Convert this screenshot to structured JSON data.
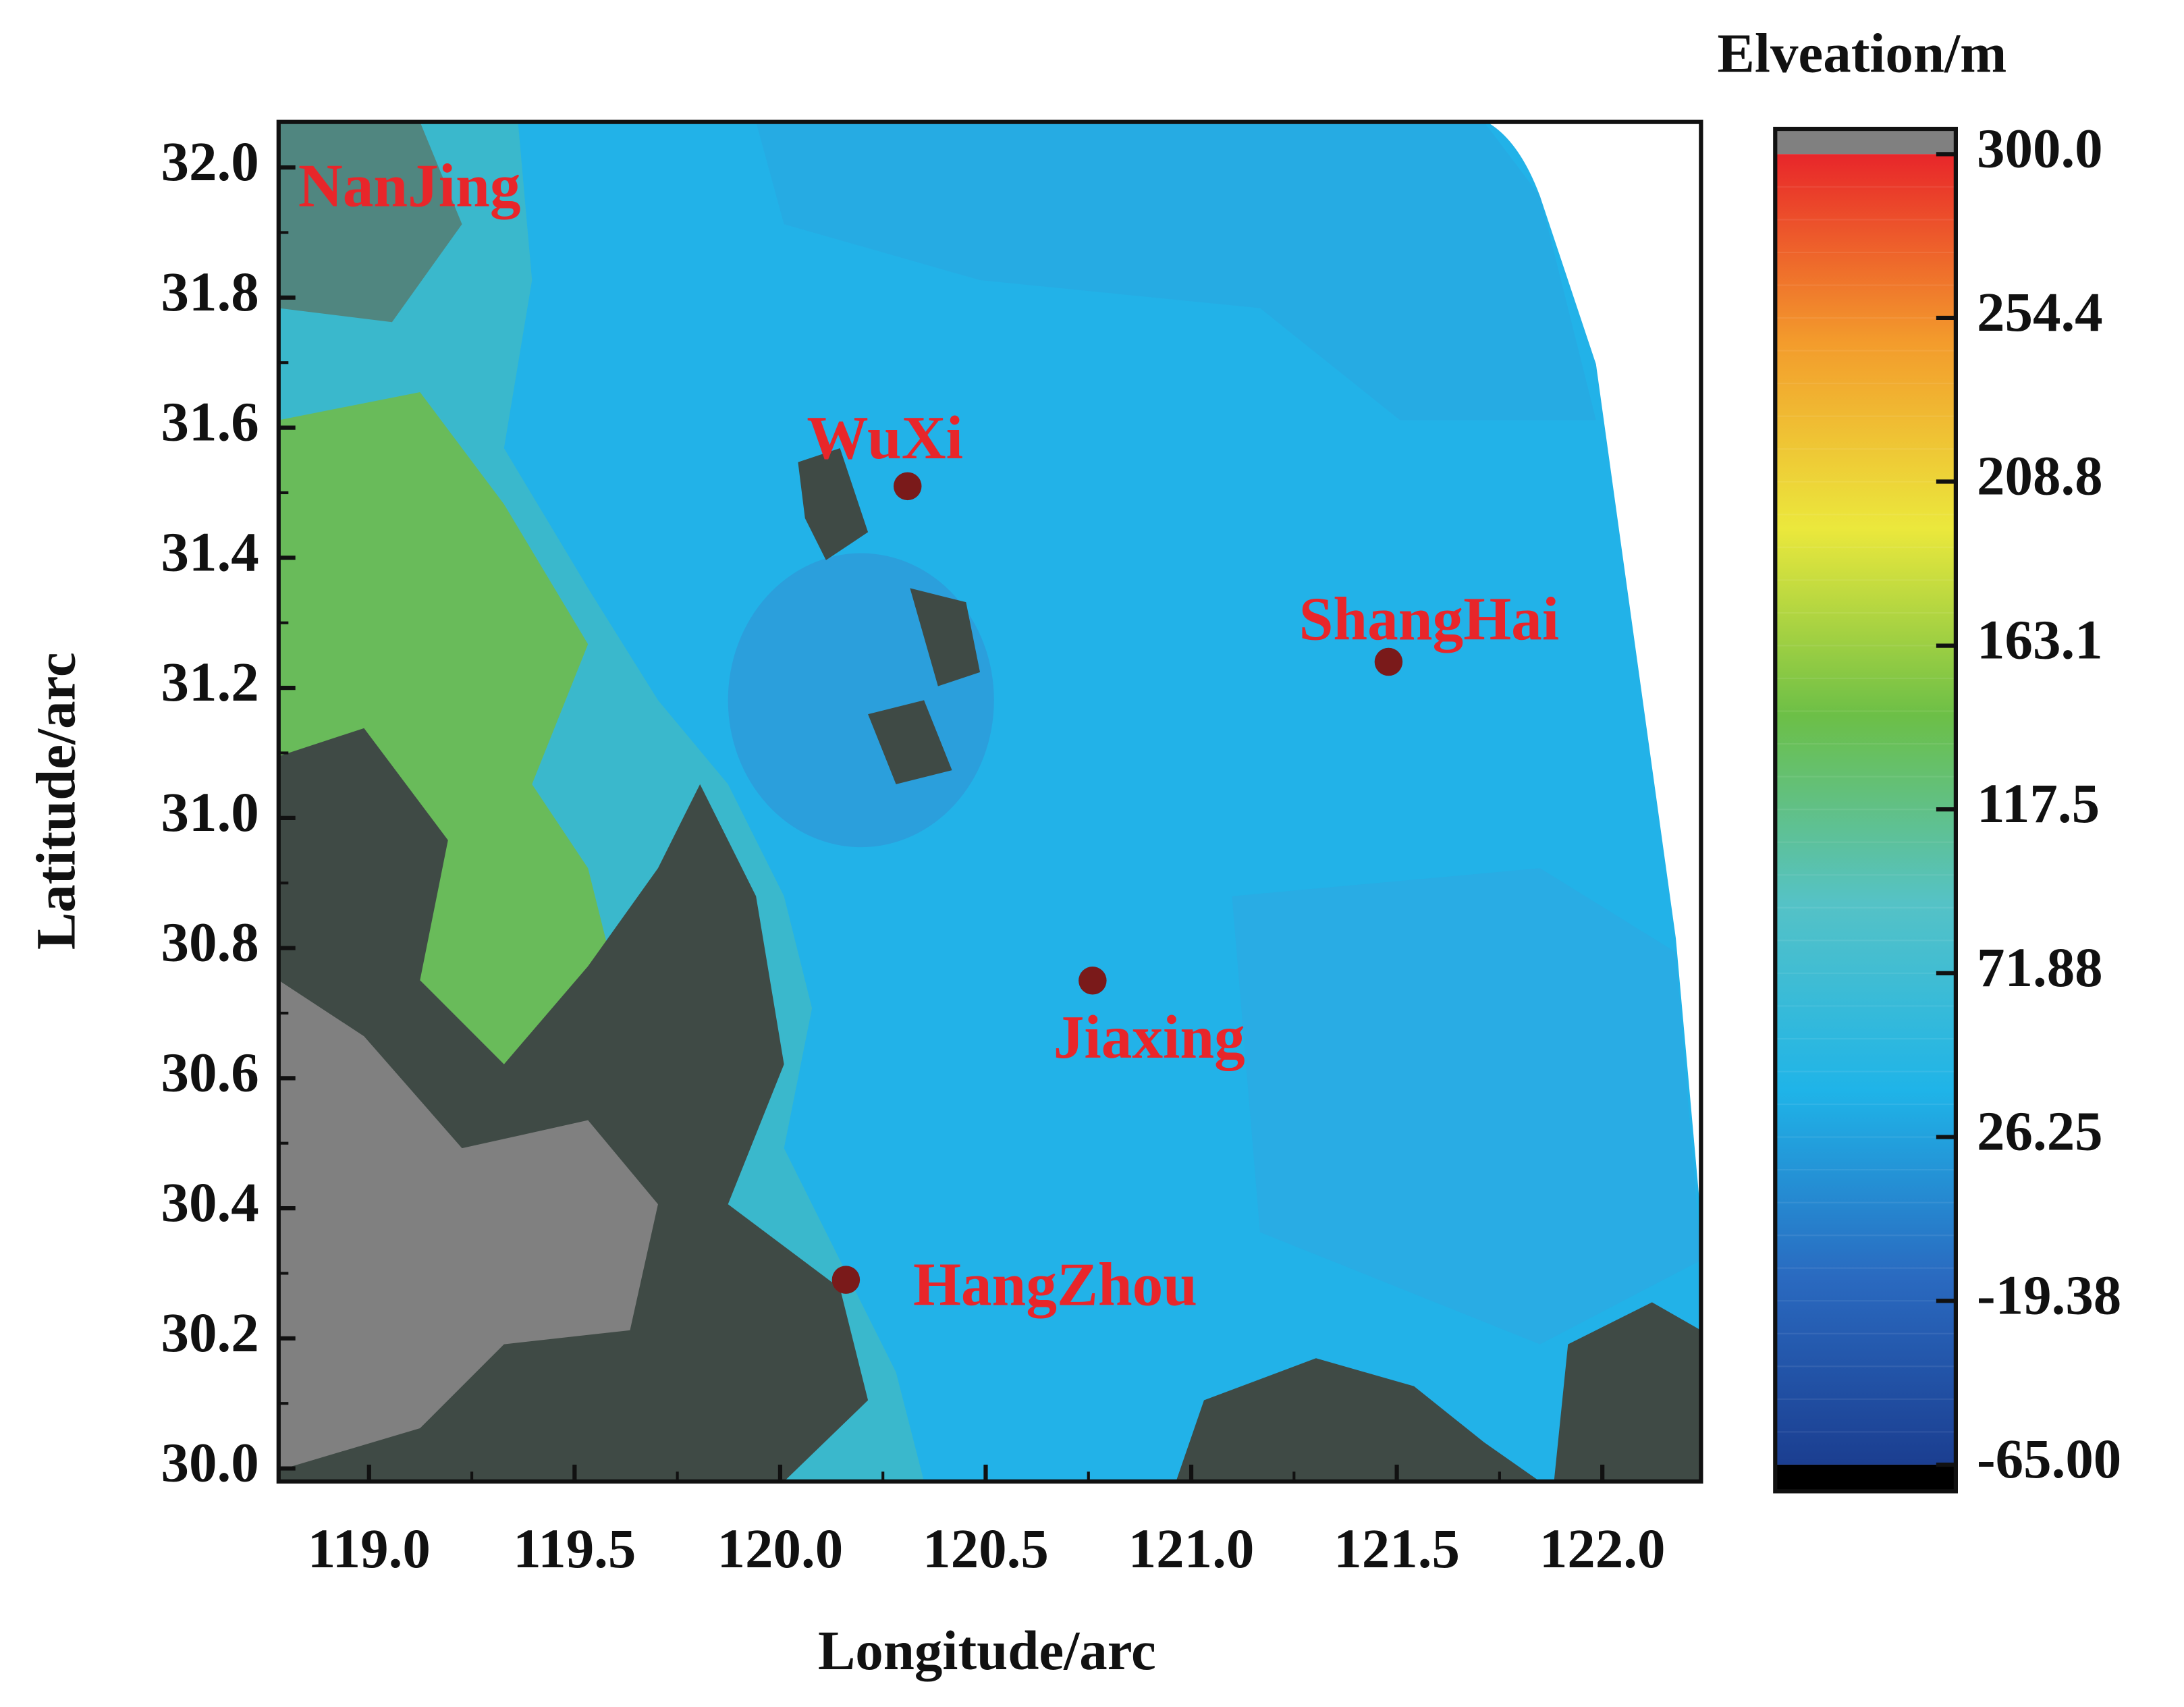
{
  "chart_data": {
    "type": "map",
    "x_label": "Longitude/arc",
    "y_label": "Latitude/arc",
    "xlim": [
      118.78,
      122.24
    ],
    "ylim": [
      29.98,
      32.07
    ],
    "xticks": [
      {
        "value": 119,
        "label": "119.0"
      },
      {
        "value": 119.5,
        "label": "119.5"
      },
      {
        "value": 120,
        "label": "120.0"
      },
      {
        "value": 120.5,
        "label": "120.5"
      },
      {
        "value": 121,
        "label": "121.0"
      },
      {
        "value": 121.5,
        "label": "121.5"
      },
      {
        "value": 122,
        "label": "122.0"
      }
    ],
    "yticks": [
      {
        "value": 30,
        "label": "30.0"
      },
      30.2,
      30.4,
      30.6,
      30.8,
      {
        "value": 31,
        "label": "31.0"
      },
      31.2,
      31.4,
      31.6,
      31.8,
      {
        "value": 32,
        "label": "32.0"
      }
    ],
    "cities": [
      {
        "name": "NanJing"
      },
      {
        "name": "WuXi",
        "lon": 120.31,
        "lat": 31.51
      },
      {
        "name": "ShangHai",
        "lon": 121.48,
        "lat": 31.24
      },
      {
        "name": "Jiaxing",
        "lon": 120.76,
        "lat": 30.75
      },
      {
        "name": "HangZhou",
        "lon": 120.16,
        "lat": 30.29
      }
    ],
    "city_color": "#e8262a",
    "marker_color": "#7a1a1a",
    "colorbar": {
      "title": "Elveation/m",
      "clim": [
        -65,
        300
      ],
      "ticks": [
        {
          "value": 300,
          "label": "300.0"
        },
        254.4,
        208.8,
        163.1,
        117.5,
        71.88,
        26.25,
        -19.38,
        {
          "value": -65,
          "label": "-65.00"
        }
      ],
      "colors": [
        "#1b3e90",
        "#2a6ac0",
        "#1fb4e8",
        "#55c2c6",
        "#6cbf47",
        "#ebe83c",
        "#f39b2c",
        "#e8262a"
      ]
    }
  }
}
